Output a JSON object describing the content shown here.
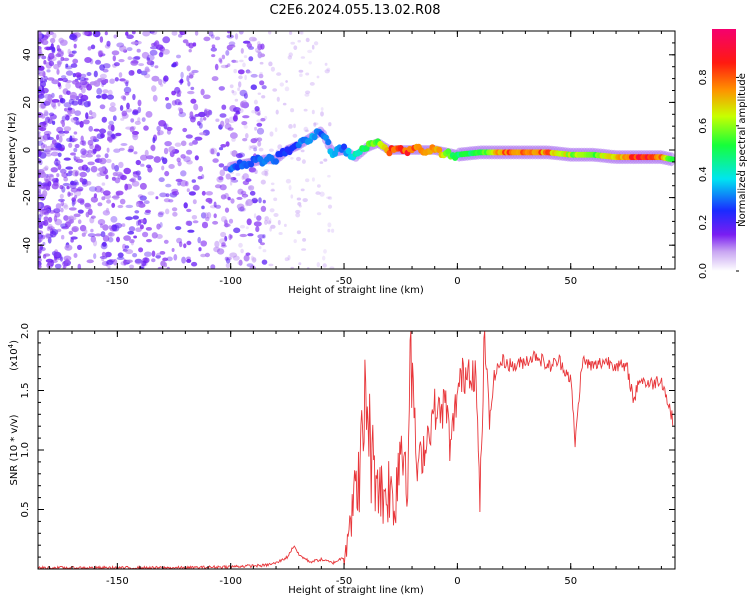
{
  "title": "C2E6.2024.055.13.02.R08",
  "chart_data": [
    {
      "type": "heatmap",
      "title": "C2E6.2024.055.13.02.R08",
      "xlabel": "Height of straight line (km)",
      "ylabel": "Frequency (Hz)",
      "xlim": [
        -185,
        96
      ],
      "ylim": [
        -50,
        50
      ],
      "xticks": [
        -150,
        -100,
        -50,
        0,
        50
      ],
      "yticks": [
        -40,
        -20,
        0,
        20,
        40
      ],
      "ridge": {
        "x": [
          -100,
          -95,
          -90,
          -85,
          -80,
          -75,
          -70,
          -65,
          -60,
          -55,
          -50,
          -45,
          -40,
          -35,
          -30,
          -20,
          -10,
          0,
          10,
          20,
          30,
          40,
          50,
          60,
          70,
          80,
          90,
          95
        ],
        "freq": [
          -7,
          -6,
          -5,
          -4,
          -4,
          0,
          2,
          5,
          8,
          -1,
          0,
          -3,
          1,
          3,
          0,
          0,
          0,
          -2,
          -1,
          -1,
          -1,
          -1,
          -2,
          -2,
          -3,
          -3,
          -3,
          -4
        ],
        "amplitude": [
          0.3,
          0.3,
          0.3,
          0.3,
          0.3,
          0.25,
          0.3,
          0.35,
          0.3,
          0.35,
          0.3,
          0.45,
          0.55,
          0.6,
          0.9,
          0.85,
          0.8,
          0.5,
          0.55,
          0.8,
          0.85,
          0.8,
          0.65,
          0.6,
          0.7,
          0.9,
          0.85,
          0.5
        ]
      }
    },
    {
      "type": "colorbar",
      "label": "Normalized spectral amplitude",
      "range": [
        0,
        1
      ],
      "ticks": [
        "0.0",
        "0.2",
        "0.4",
        "0.6",
        "0.8"
      ]
    },
    {
      "type": "line",
      "xlabel": "Height of straight line (km)",
      "ylabel": "SNR (10 * v/v)",
      "y_multiplier": "(x10",
      "y_multiplier_exp": "4",
      "y_multiplier_close": ")",
      "xlim": [
        -185,
        96
      ],
      "ylim": [
        0,
        2.0
      ],
      "xticks": [
        -150,
        -100,
        -50,
        0,
        50
      ],
      "yticks": [
        "0.5",
        "1.0",
        "1.5",
        "2.0"
      ],
      "series": [
        {
          "name": "SNR",
          "color": "#e8363a",
          "x": [
            -185,
            -150,
            -120,
            -100,
            -85,
            -80,
            -75,
            -72,
            -70,
            -65,
            -60,
            -55,
            -50,
            -48,
            -45,
            -42,
            -40,
            -38,
            -35,
            -33,
            -30,
            -28,
            -25,
            -22,
            -20,
            -18,
            -15,
            -12,
            -10,
            -8,
            -5,
            -3,
            0,
            2,
            5,
            8,
            10,
            12,
            14,
            16,
            18,
            20,
            25,
            30,
            35,
            40,
            45,
            50,
            52,
            55,
            60,
            65,
            70,
            75,
            78,
            80,
            85,
            90,
            95
          ],
          "y": [
            0.01,
            0.01,
            0.01,
            0.02,
            0.03,
            0.05,
            0.1,
            0.2,
            0.12,
            0.06,
            0.08,
            0.05,
            0.1,
            0.4,
            0.6,
            1.0,
            1.55,
            0.9,
            0.8,
            0.6,
            0.7,
            0.5,
            1.1,
            0.9,
            1.85,
            0.8,
            1.0,
            1.2,
            1.35,
            1.3,
            1.4,
            1.0,
            1.5,
            1.6,
            1.7,
            1.65,
            0.55,
            2.0,
            1.2,
            1.6,
            1.7,
            1.75,
            1.7,
            1.75,
            1.8,
            1.7,
            1.75,
            1.6,
            1.05,
            1.75,
            1.7,
            1.75,
            1.72,
            1.68,
            1.4,
            1.6,
            1.55,
            1.6,
            1.25
          ]
        }
      ]
    }
  ]
}
